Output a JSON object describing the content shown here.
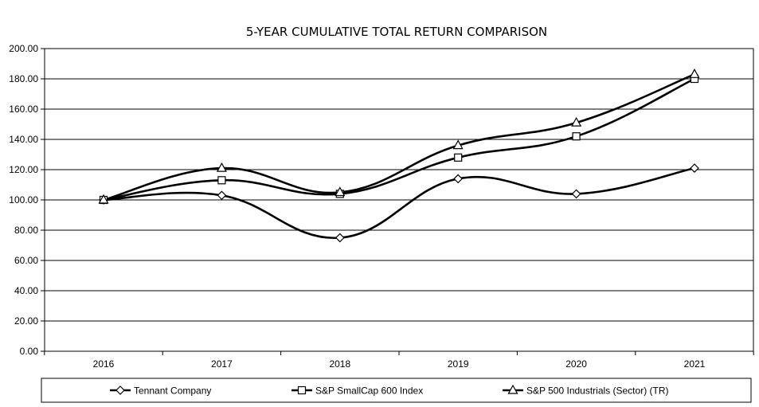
{
  "chart_data": {
    "type": "line",
    "title": "5-YEAR CUMULATIVE TOTAL RETURN COMPARISON",
    "xlabel": "",
    "ylabel": "",
    "categories": [
      "2016",
      "2017",
      "2018",
      "2019",
      "2020",
      "2021"
    ],
    "ylim": [
      0,
      200
    ],
    "yticks": [
      "0.00",
      "20.00",
      "40.00",
      "60.00",
      "80.00",
      "100.00",
      "120.00",
      "140.00",
      "160.00",
      "180.00",
      "200.00"
    ],
    "grid": true,
    "legend_position": "bottom",
    "series": [
      {
        "name": "Tennant Company",
        "marker": "diamond",
        "values": [
          100,
          103,
          75,
          114,
          104,
          121
        ]
      },
      {
        "name": "S&P SmallCap 600 Index",
        "marker": "square",
        "values": [
          100,
          113,
          104,
          128,
          142,
          180
        ]
      },
      {
        "name": "S&P 500 Industrials (Sector) (TR)",
        "marker": "triangle",
        "values": [
          100,
          121,
          105,
          136,
          151,
          183
        ]
      }
    ]
  }
}
